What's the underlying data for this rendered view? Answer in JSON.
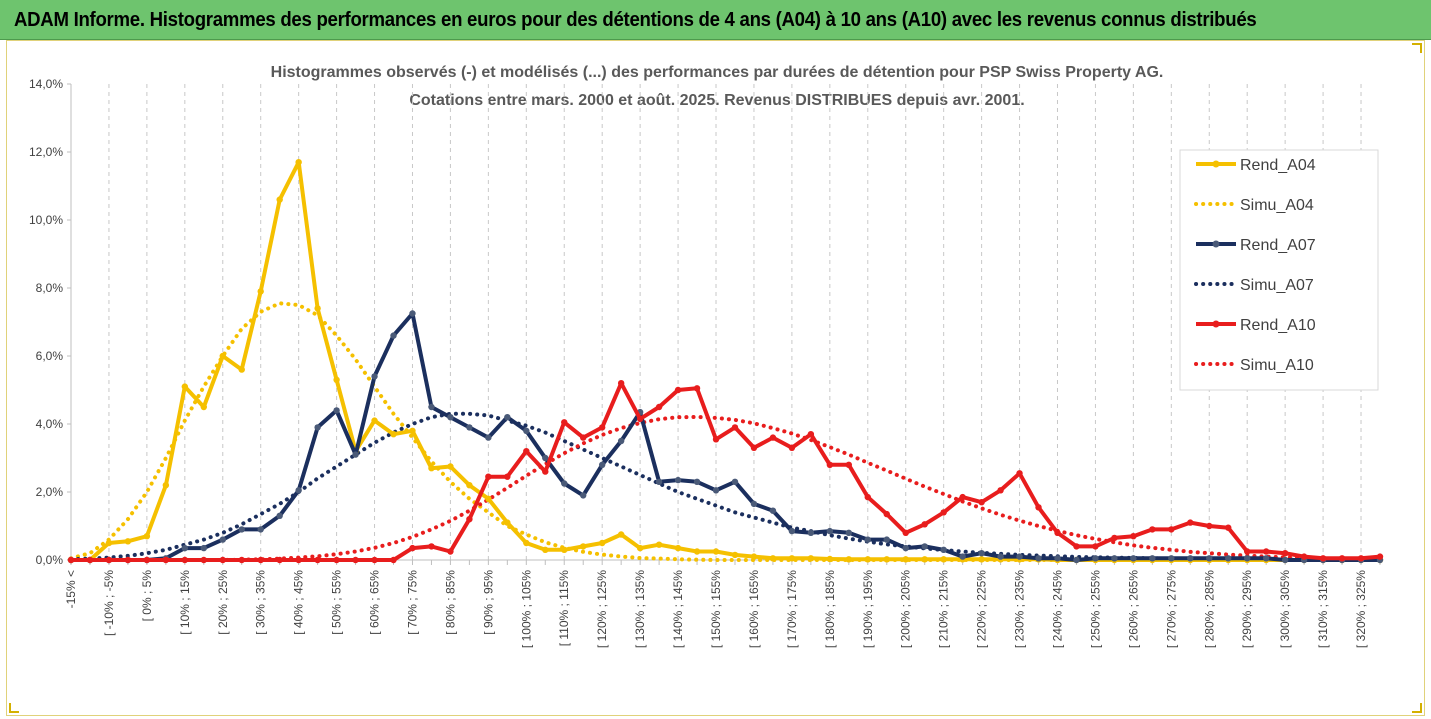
{
  "banner": {
    "title": "ADAM Informe. Histogrammes des performances en euros pour des détentions de 4 ans (A04) à 10 ans (A10) avec les revenus connus distribués"
  },
  "chart_data": {
    "type": "line",
    "title_line1": "Histogrammes observés (-) et modélisés (...) des performances par durées de détention pour PSP Swiss Property AG.",
    "title_line2": "Cotations entre mars. 2000 et août. 2025. Revenus DISTRIBUES depuis avr. 2001.",
    "ylim": [
      0,
      14
    ],
    "ytick_values": [
      0,
      2,
      4,
      6,
      8,
      10,
      12,
      14
    ],
    "ytick_labels": [
      "0,0%",
      "2,0%",
      "4,0%",
      "6,0%",
      "8,0%",
      "10,0%",
      "12,0%",
      "14,0%"
    ],
    "x_count": 70,
    "x_labeled_indices": [
      0,
      2,
      4,
      6,
      8,
      10,
      12,
      14,
      16,
      18,
      20,
      22,
      24,
      26,
      28,
      30,
      32,
      34,
      36,
      38,
      40,
      42,
      44,
      46,
      48,
      50,
      52,
      54,
      56,
      58,
      60,
      62,
      64,
      66,
      68
    ],
    "x_labels": [
      "-15% <",
      "[ -10% ; -5%",
      "[ 0% ; 5%",
      "[ 10% ; 15%",
      "[ 20% ; 25%",
      "[ 30% ; 35%",
      "[ 40% ; 45%",
      "[ 50% ; 55%",
      "[ 60% ; 65%",
      "[ 70% ; 75%",
      "[ 80% ; 85%",
      "[ 90% ; 95%",
      "[ 100% ; 105%",
      "[ 110% ; 115%",
      "[ 120% ; 125%",
      "[ 130% ; 135%",
      "[ 140% ; 145%",
      "[ 150% ; 155%",
      "[ 160% ; 165%",
      "[ 170% ; 175%",
      "[ 180% ; 185%",
      "[ 190% ; 195%",
      "[ 200% ; 205%",
      "[ 210% ; 215%",
      "[ 220% ; 225%",
      "[ 230% ; 235%",
      "[ 240% ; 245%",
      "[ 250% ; 255%",
      "[ 260% ; 265%",
      "[ 270% ; 275%",
      "[ 280% ; 285%",
      "[ 290% ; 295%",
      "[ 300% ; 305%",
      "[ 310% ; 315%",
      "[ 320% ; 325%"
    ],
    "legend_position": "right",
    "grid": "vertical dashed",
    "series": [
      {
        "name": "Rend_A04",
        "style": "solid",
        "color": "#f5c000",
        "values": [
          0,
          0,
          0.5,
          0.55,
          0.7,
          2.2,
          5.1,
          4.5,
          6.0,
          5.6,
          7.9,
          10.6,
          11.7,
          7.4,
          5.3,
          3.2,
          4.1,
          3.7,
          3.8,
          2.7,
          2.75,
          2.2,
          1.8,
          1.1,
          0.5,
          0.3,
          0.3,
          0.4,
          0.5,
          0.75,
          0.35,
          0.45,
          0.35,
          0.25,
          0.25,
          0.15,
          0.1,
          0.05,
          0.05,
          0.05,
          0.03,
          0.02,
          0.02,
          0.02,
          0.02,
          0.02,
          0.02,
          0.02,
          0.02,
          0.02,
          0.02,
          0.02,
          0,
          0,
          0,
          0,
          0,
          0,
          0,
          0,
          0,
          0,
          0,
          0,
          0,
          0,
          0,
          0,
          0,
          0
        ]
      },
      {
        "name": "Simu_A04",
        "style": "dotted",
        "color": "#f5c000",
        "values": [
          0.05,
          0.2,
          0.6,
          1.2,
          2.0,
          3.0,
          4.1,
          5.1,
          6.0,
          6.8,
          7.3,
          7.55,
          7.5,
          7.2,
          6.6,
          5.9,
          5.1,
          4.3,
          3.6,
          2.9,
          2.3,
          1.8,
          1.4,
          1.0,
          0.75,
          0.52,
          0.36,
          0.24,
          0.16,
          0.1,
          0.06,
          0.04,
          0.02,
          0.01,
          0,
          0,
          0,
          0,
          0,
          0,
          0,
          0,
          0,
          0,
          0,
          0,
          0,
          0,
          0,
          0,
          0,
          0,
          0,
          0,
          0,
          0,
          0,
          0,
          0,
          0,
          0,
          0,
          0,
          0,
          0,
          0,
          0,
          0,
          0,
          0
        ]
      },
      {
        "name": "Rend_A07",
        "style": "solid",
        "color": "#1b2f5e",
        "values": [
          0,
          0,
          0,
          0,
          0,
          0.05,
          0.35,
          0.35,
          0.6,
          0.9,
          0.9,
          1.3,
          2.05,
          3.9,
          4.4,
          3.1,
          5.4,
          6.6,
          7.25,
          4.5,
          4.2,
          3.9,
          3.6,
          4.2,
          3.8,
          3.0,
          2.25,
          1.9,
          2.8,
          3.5,
          4.35,
          2.3,
          2.35,
          2.3,
          2.05,
          2.3,
          1.65,
          1.45,
          0.85,
          0.8,
          0.85,
          0.8,
          0.6,
          0.6,
          0.35,
          0.4,
          0.3,
          0.1,
          0.2,
          0.1,
          0.1,
          0.05,
          0.05,
          0,
          0.05,
          0.05,
          0.05,
          0.05,
          0.05,
          0.05,
          0.05,
          0.05,
          0.05,
          0.05,
          0,
          0,
          0,
          0,
          0,
          0
        ]
      },
      {
        "name": "Simu_A07",
        "style": "dotted",
        "color": "#1b2f5e",
        "values": [
          0.02,
          0.04,
          0.07,
          0.12,
          0.2,
          0.3,
          0.45,
          0.6,
          0.8,
          1.05,
          1.35,
          1.65,
          2.0,
          2.4,
          2.75,
          3.1,
          3.45,
          3.75,
          4.0,
          4.2,
          4.3,
          4.3,
          4.25,
          4.1,
          3.95,
          3.75,
          3.5,
          3.25,
          3.0,
          2.75,
          2.5,
          2.25,
          2.0,
          1.8,
          1.6,
          1.4,
          1.25,
          1.1,
          0.95,
          0.85,
          0.73,
          0.63,
          0.54,
          0.46,
          0.4,
          0.34,
          0.29,
          0.25,
          0.21,
          0.18,
          0.15,
          0.13,
          0.11,
          0.09,
          0.08,
          0.07,
          0.06,
          0.05,
          0.04,
          0.03,
          0.03,
          0.02,
          0.02,
          0.02,
          0.01,
          0.01,
          0.01,
          0,
          0,
          0
        ]
      },
      {
        "name": "Rend_A10",
        "style": "solid",
        "color": "#e81d1d",
        "values": [
          0,
          0,
          0,
          0,
          0,
          0,
          0,
          0,
          0,
          0,
          0,
          0,
          0,
          0,
          0,
          0,
          0,
          0,
          0.35,
          0.4,
          0.25,
          1.2,
          2.45,
          2.45,
          3.2,
          2.6,
          4.05,
          3.6,
          3.9,
          5.2,
          4.15,
          4.5,
          5.0,
          5.05,
          3.55,
          3.9,
          3.3,
          3.6,
          3.3,
          3.7,
          2.8,
          2.8,
          1.85,
          1.35,
          0.8,
          1.05,
          1.4,
          1.85,
          1.7,
          2.05,
          2.55,
          1.55,
          0.8,
          0.4,
          0.4,
          0.65,
          0.7,
          0.9,
          0.9,
          1.1,
          1.0,
          0.95,
          0.25,
          0.25,
          0.2,
          0.1,
          0.05,
          0.05,
          0.05,
          0.1
        ]
      },
      {
        "name": "Simu_A10",
        "style": "dotted",
        "color": "#e81d1d",
        "values": [
          0,
          0,
          0,
          0,
          0,
          0,
          0,
          0,
          0,
          0.01,
          0.02,
          0.04,
          0.07,
          0.11,
          0.17,
          0.25,
          0.36,
          0.5,
          0.68,
          0.9,
          1.15,
          1.45,
          1.78,
          2.12,
          2.48,
          2.82,
          3.14,
          3.43,
          3.68,
          3.88,
          4.03,
          4.14,
          4.2,
          4.21,
          4.18,
          4.12,
          4.02,
          3.88,
          3.72,
          3.53,
          3.32,
          3.1,
          2.86,
          2.63,
          2.39,
          2.16,
          1.94,
          1.72,
          1.52,
          1.33,
          1.16,
          1.0,
          0.86,
          0.73,
          0.62,
          0.52,
          0.43,
          0.36,
          0.3,
          0.24,
          0.2,
          0.16,
          0.13,
          0.1,
          0.08,
          0.06,
          0.05,
          0.04,
          0.03,
          0.02
        ]
      }
    ]
  }
}
